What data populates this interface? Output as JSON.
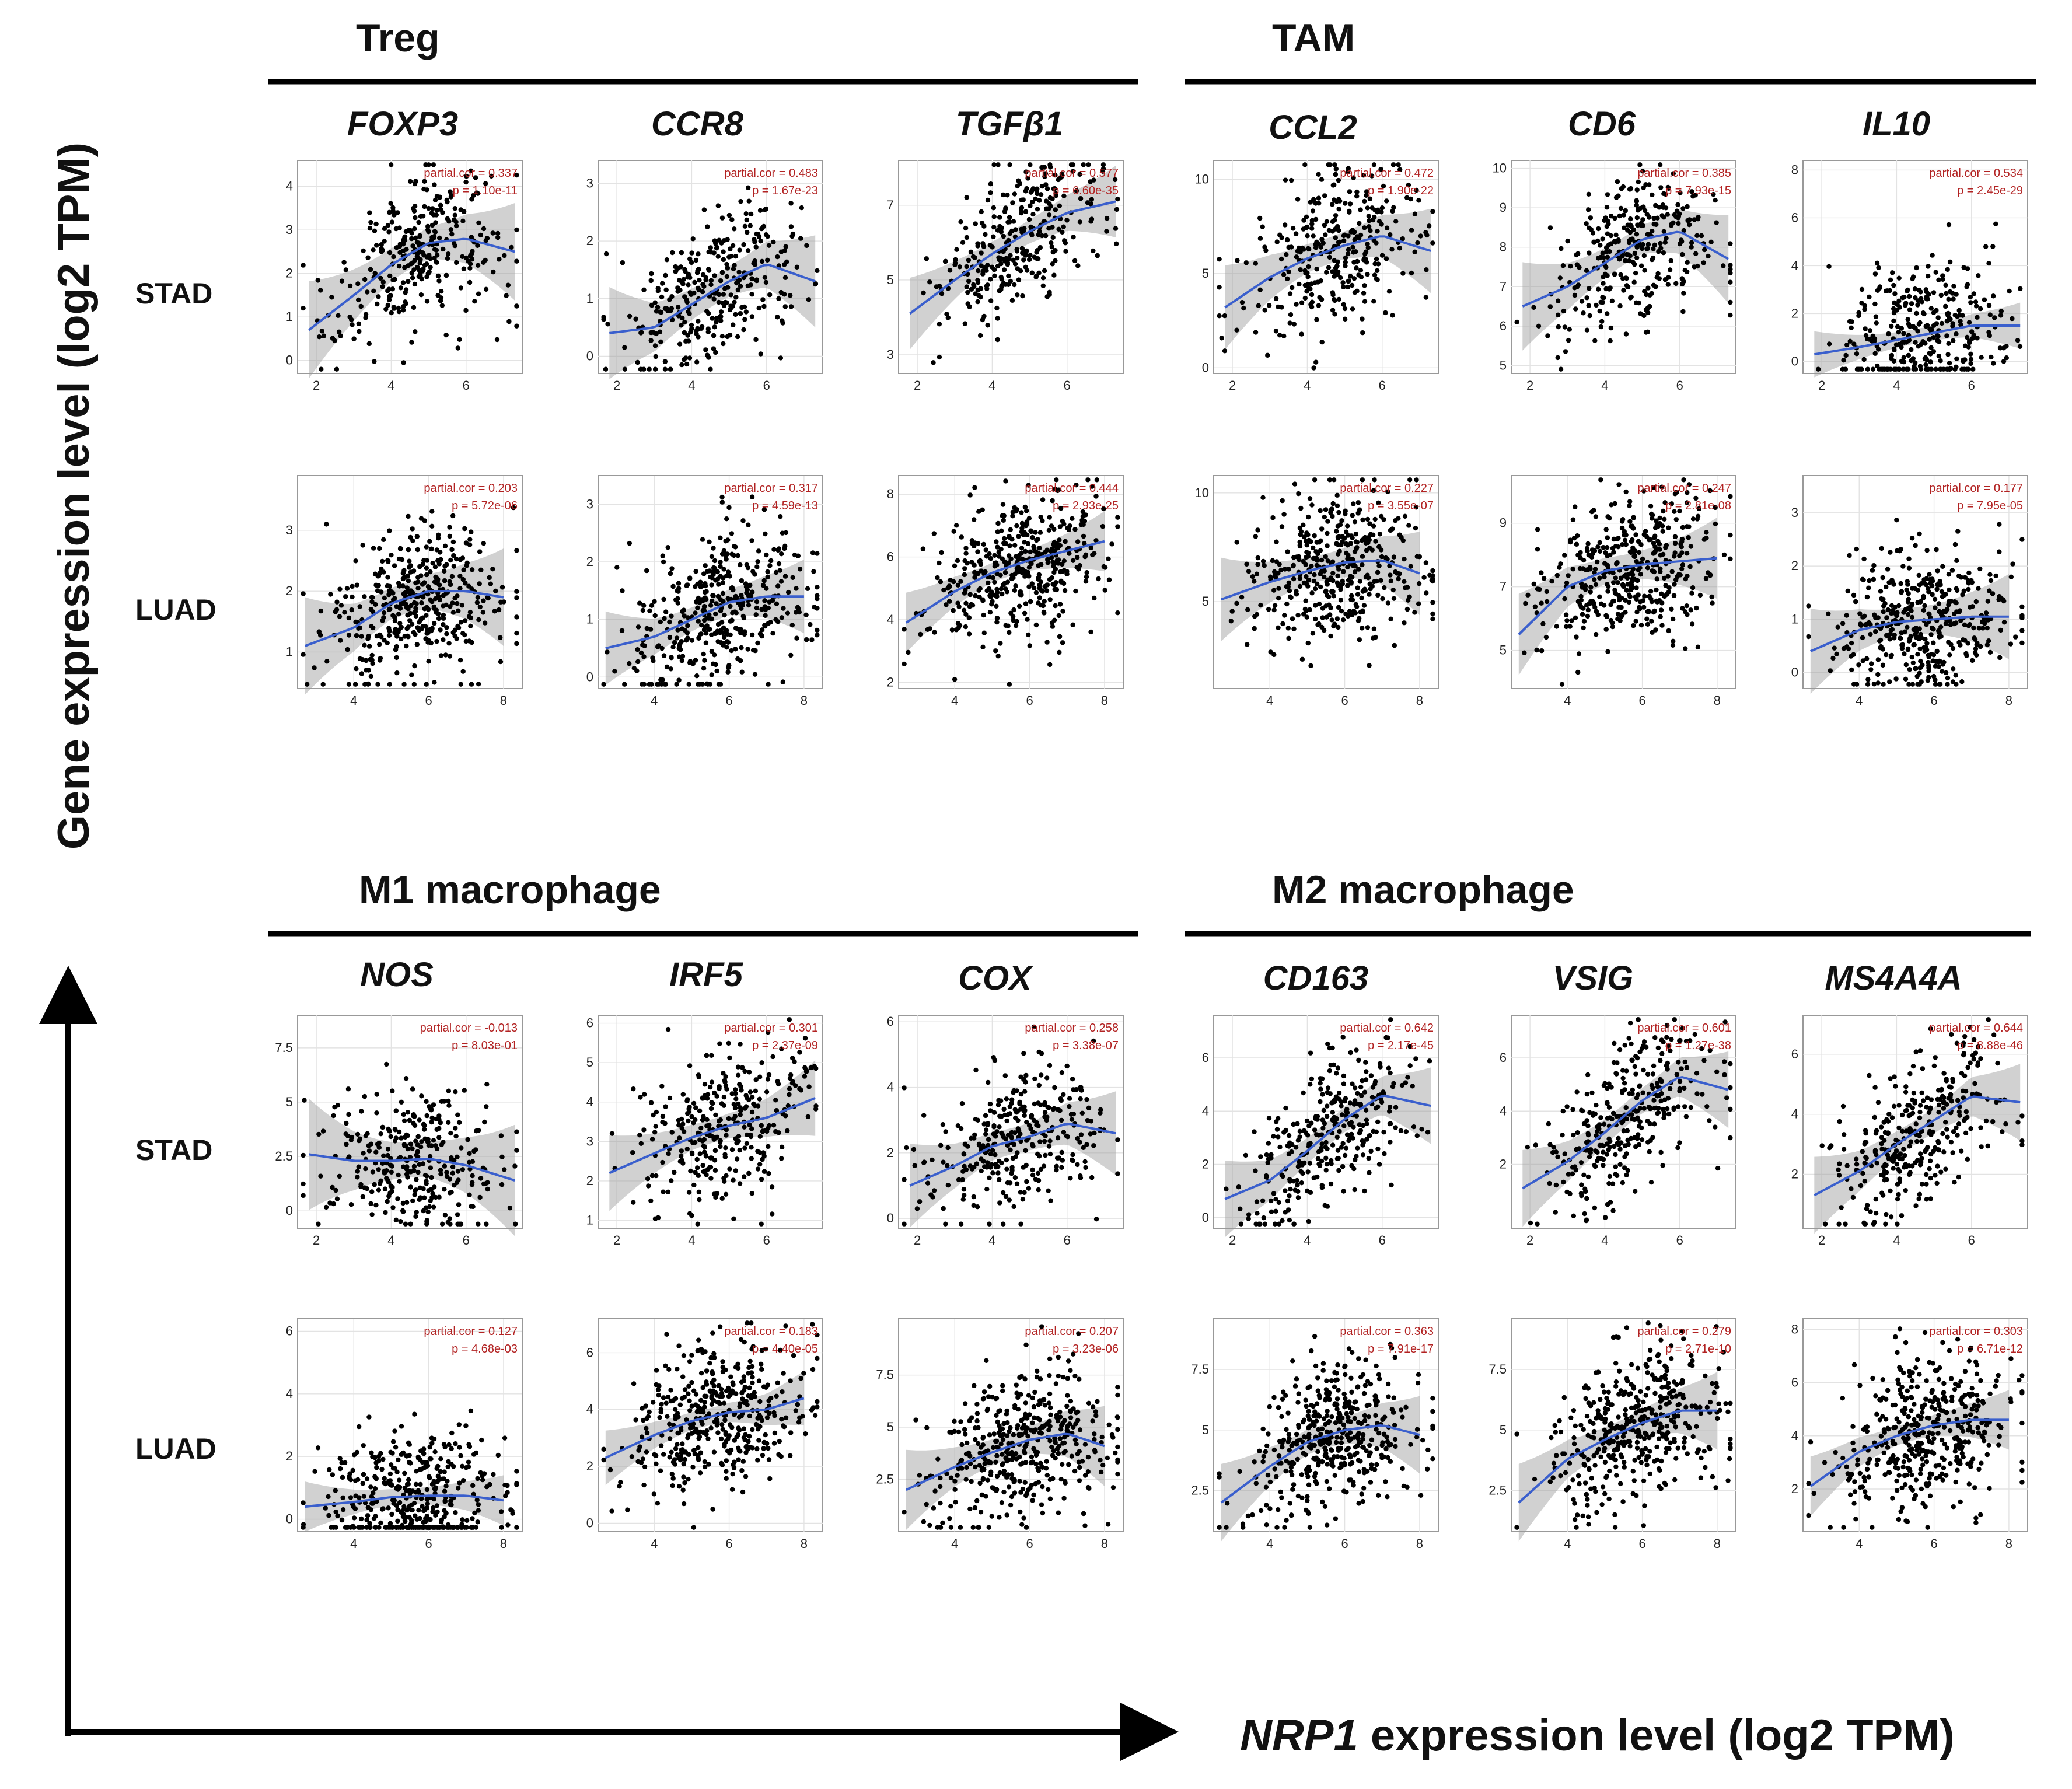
{
  "figure": {
    "y_axis_label": "Gene expression level (log2 TPM)",
    "x_axis_label_gene": "NRP1",
    "x_axis_label_rest": " expression level (log2 TPM)"
  },
  "groups": [
    {
      "title": "Treg",
      "genes": [
        "FOXP3",
        "CCR8",
        "TGFβ1"
      ]
    },
    {
      "title": "TAM",
      "genes": [
        "CCL2",
        "CD6",
        "IL10"
      ]
    },
    {
      "title": "M1 macrophage",
      "genes": [
        "NOS",
        "IRF5",
        "COX"
      ]
    },
    {
      "title": "M2 macrophage",
      "genes": [
        "CD163",
        "VSIG",
        "MS4A4A"
      ]
    }
  ],
  "row_labels": [
    "STAD",
    "LUAD",
    "STAD",
    "LUAD"
  ],
  "chart_data": [
    {
      "type": "scatter",
      "panel": "FOXP3-STAD",
      "gene": "FOXP3",
      "cancer": "STAD",
      "partial_cor": "partial.cor = 0.337",
      "p": "p = 1.10e-11",
      "xlim": [
        1.5,
        7.5
      ],
      "ylim": [
        -0.3,
        4.6
      ],
      "xticks": [
        2,
        4,
        6
      ],
      "yticks": [
        0,
        1,
        2,
        3,
        4
      ],
      "n": 320,
      "fit_x": [
        1.8,
        3,
        4,
        5,
        6,
        7.3
      ],
      "fit_y": [
        0.7,
        1.5,
        2.2,
        2.7,
        2.8,
        2.5
      ],
      "band": 0.35
    },
    {
      "type": "scatter",
      "panel": "CCR8-STAD",
      "gene": "CCR8",
      "cancer": "STAD",
      "partial_cor": "partial.cor = 0.483",
      "p": "p = 1.67e-23",
      "xlim": [
        1.5,
        7.5
      ],
      "ylim": [
        -0.3,
        3.4
      ],
      "xticks": [
        2,
        4,
        6
      ],
      "yticks": [
        0,
        1,
        2,
        3
      ],
      "n": 320,
      "fit_x": [
        1.8,
        3,
        4,
        5,
        6,
        7.3
      ],
      "fit_y": [
        0.4,
        0.5,
        0.9,
        1.3,
        1.6,
        1.3
      ],
      "band": 0.25
    },
    {
      "type": "scatter",
      "panel": "TGFB1-STAD",
      "gene": "TGFβ1",
      "cancer": "STAD",
      "partial_cor": "partial.cor = 0.577",
      "p": "p = 6.60e-35",
      "xlim": [
        1.5,
        7.5
      ],
      "ylim": [
        2.5,
        8.2
      ],
      "xticks": [
        2,
        4,
        6
      ],
      "yticks": [
        3,
        5,
        7
      ],
      "n": 320,
      "fit_x": [
        1.8,
        3,
        4,
        5,
        6,
        7.3
      ],
      "fit_y": [
        4.1,
        5.0,
        5.7,
        6.3,
        6.8,
        7.1
      ],
      "band": 0.3
    },
    {
      "type": "scatter",
      "panel": "CCL2-STAD",
      "gene": "CCL2",
      "cancer": "STAD",
      "partial_cor": "partial.cor = 0.472",
      "p": "p = 1.90e-22",
      "xlim": [
        1.5,
        7.5
      ],
      "ylim": [
        -0.3,
        11
      ],
      "xticks": [
        2,
        4,
        6
      ],
      "yticks": [
        0,
        5,
        10
      ],
      "n": 320,
      "fit_x": [
        1.8,
        3,
        4,
        5,
        6,
        7.3
      ],
      "fit_y": [
        3.2,
        4.8,
        5.8,
        6.5,
        7.0,
        6.2
      ],
      "band": 0.7
    },
    {
      "type": "scatter",
      "panel": "CD6-STAD",
      "gene": "CD6",
      "cancer": "STAD",
      "partial_cor": "partial.cor = 0.385",
      "p": "p = 7.93e-15",
      "xlim": [
        1.5,
        7.5
      ],
      "ylim": [
        4.8,
        10.2
      ],
      "xticks": [
        2,
        4,
        6
      ],
      "yticks": [
        5,
        6,
        7,
        8,
        9,
        10
      ],
      "n": 320,
      "fit_x": [
        1.8,
        3,
        4,
        5,
        6,
        7.3
      ],
      "fit_y": [
        6.5,
        7.0,
        7.6,
        8.2,
        8.4,
        7.7
      ],
      "band": 0.35
    },
    {
      "type": "scatter",
      "panel": "IL10-STAD",
      "gene": "IL10",
      "cancer": "STAD",
      "partial_cor": "partial.cor = 0.534",
      "p": "p = 2.45e-29",
      "xlim": [
        1.5,
        7.5
      ],
      "ylim": [
        -0.5,
        8.4
      ],
      "xticks": [
        2,
        4,
        6
      ],
      "yticks": [
        0,
        2,
        4,
        6,
        8
      ],
      "n": 320,
      "fit_x": [
        1.8,
        3,
        4,
        5,
        6,
        7.3
      ],
      "fit_y": [
        0.3,
        0.6,
        0.9,
        1.2,
        1.5,
        1.5
      ],
      "band": 0.3
    },
    {
      "type": "scatter",
      "panel": "FOXP3-LUAD",
      "gene": "FOXP3",
      "cancer": "LUAD",
      "partial_cor": "partial.cor = 0.203",
      "p": "p = 5.72e-06",
      "xlim": [
        2.5,
        8.5
      ],
      "ylim": [
        0.4,
        3.9
      ],
      "xticks": [
        4,
        6,
        8
      ],
      "yticks": [
        1,
        2,
        3
      ],
      "n": 420,
      "fit_x": [
        2.7,
        4,
        5,
        6,
        7,
        8
      ],
      "fit_y": [
        1.1,
        1.4,
        1.8,
        2.0,
        2.0,
        1.9
      ],
      "band": 0.25
    },
    {
      "type": "scatter",
      "panel": "CCR8-LUAD",
      "gene": "CCR8",
      "cancer": "LUAD",
      "partial_cor": "partial.cor = 0.317",
      "p": "p = 4.59e-13",
      "xlim": [
        2.5,
        8.5
      ],
      "ylim": [
        -0.2,
        3.5
      ],
      "xticks": [
        4,
        6,
        8
      ],
      "yticks": [
        0,
        1,
        2,
        3
      ],
      "n": 420,
      "fit_x": [
        2.7,
        4,
        5,
        6,
        7,
        8
      ],
      "fit_y": [
        0.5,
        0.7,
        1.0,
        1.3,
        1.4,
        1.4
      ],
      "band": 0.2
    },
    {
      "type": "scatter",
      "panel": "TGFB1-LUAD",
      "gene": "TGFβ1",
      "cancer": "LUAD",
      "partial_cor": "partial.cor = 0.444",
      "p": "p = 2.93e-25",
      "xlim": [
        2.5,
        8.5
      ],
      "ylim": [
        1.8,
        8.6
      ],
      "xticks": [
        4,
        6,
        8
      ],
      "yticks": [
        2,
        4,
        6,
        8
      ],
      "n": 420,
      "fit_x": [
        2.7,
        4,
        5,
        6,
        7,
        8
      ],
      "fit_y": [
        3.9,
        4.9,
        5.5,
        5.9,
        6.2,
        6.5
      ],
      "band": 0.3
    },
    {
      "type": "scatter",
      "panel": "CCL2-LUAD",
      "gene": "CCL2",
      "cancer": "LUAD",
      "partial_cor": "partial.cor = 0.227",
      "p": "p = 3.55e-07",
      "xlim": [
        2.5,
        8.5
      ],
      "ylim": [
        1,
        10.8
      ],
      "xticks": [
        4,
        6,
        8
      ],
      "yticks": [
        5,
        10
      ],
      "n": 420,
      "fit_x": [
        2.7,
        4,
        5,
        6,
        7,
        8
      ],
      "fit_y": [
        5.1,
        5.9,
        6.4,
        6.8,
        6.9,
        6.3
      ],
      "band": 0.6
    },
    {
      "type": "scatter",
      "panel": "CD6-LUAD",
      "gene": "CD6",
      "cancer": "LUAD",
      "partial_cor": "partial.cor = 0.247",
      "p": "p = 2.81e-08",
      "xlim": [
        2.5,
        8.5
      ],
      "ylim": [
        3.8,
        10.5
      ],
      "xticks": [
        4,
        6,
        8
      ],
      "yticks": [
        5,
        7,
        9
      ],
      "n": 420,
      "fit_x": [
        2.7,
        4,
        5,
        6,
        7,
        8
      ],
      "fit_y": [
        5.5,
        7.0,
        7.5,
        7.7,
        7.8,
        7.9
      ],
      "band": 0.4
    },
    {
      "type": "scatter",
      "panel": "IL10-LUAD",
      "gene": "IL10",
      "cancer": "LUAD",
      "partial_cor": "partial.cor = 0.177",
      "p": "p = 7.95e-05",
      "xlim": [
        2.5,
        8.5
      ],
      "ylim": [
        -0.3,
        3.7
      ],
      "xticks": [
        4,
        6,
        8
      ],
      "yticks": [
        0,
        1,
        2,
        3
      ],
      "n": 420,
      "fit_x": [
        2.7,
        4,
        5,
        6,
        7,
        8
      ],
      "fit_y": [
        0.4,
        0.8,
        0.95,
        1.0,
        1.05,
        1.05
      ],
      "band": 0.25
    },
    {
      "type": "scatter",
      "panel": "NOS-STAD",
      "gene": "NOS",
      "cancer": "STAD",
      "partial_cor": "partial.cor = -0.013",
      "p": "p = 8.03e-01",
      "xlim": [
        1.5,
        7.5
      ],
      "ylim": [
        -0.8,
        9
      ],
      "xticks": [
        2,
        4,
        6
      ],
      "yticks": [
        0,
        2.5,
        5,
        7.5
      ],
      "n": 320,
      "fit_x": [
        1.8,
        3,
        4,
        5,
        6,
        7.3
      ],
      "fit_y": [
        2.6,
        2.3,
        2.3,
        2.4,
        2.1,
        1.4
      ],
      "band": 0.8
    },
    {
      "type": "scatter",
      "panel": "IRF5-STAD",
      "gene": "IRF5",
      "cancer": "STAD",
      "partial_cor": "partial.cor = 0.301",
      "p": "p = 2.37e-09",
      "xlim": [
        1.5,
        7.5
      ],
      "ylim": [
        0.8,
        6.2
      ],
      "xticks": [
        2,
        4,
        6
      ],
      "yticks": [
        1,
        2,
        3,
        4,
        5,
        6
      ],
      "n": 320,
      "fit_x": [
        1.8,
        3,
        4,
        5,
        6,
        7.3
      ],
      "fit_y": [
        2.2,
        2.7,
        3.1,
        3.4,
        3.6,
        4.1
      ],
      "band": 0.3
    },
    {
      "type": "scatter",
      "panel": "COX-STAD",
      "gene": "COX",
      "cancer": "STAD",
      "partial_cor": "partial.cor = 0.258",
      "p": "p = 3.38e-07",
      "xlim": [
        1.5,
        7.5
      ],
      "ylim": [
        -0.3,
        6.2
      ],
      "xticks": [
        2,
        4,
        6
      ],
      "yticks": [
        0,
        2,
        4,
        6
      ],
      "n": 320,
      "fit_x": [
        1.8,
        3,
        4,
        5,
        6,
        7.3
      ],
      "fit_y": [
        1.0,
        1.6,
        2.2,
        2.5,
        2.9,
        2.6
      ],
      "band": 0.4
    },
    {
      "type": "scatter",
      "panel": "CD163-STAD",
      "gene": "CD163",
      "cancer": "STAD",
      "partial_cor": "partial.cor = 0.642",
      "p": "p = 2.17e-45",
      "xlim": [
        1.5,
        7.5
      ],
      "ylim": [
        -0.4,
        7.6
      ],
      "xticks": [
        2,
        4,
        6
      ],
      "yticks": [
        0,
        2,
        4,
        6
      ],
      "n": 320,
      "fit_x": [
        1.8,
        3,
        4,
        5,
        6,
        7.3
      ],
      "fit_y": [
        0.7,
        1.4,
        2.5,
        3.7,
        4.6,
        4.2
      ],
      "band": 0.45
    },
    {
      "type": "scatter",
      "panel": "VSIG-STAD",
      "gene": "VSIG",
      "cancer": "STAD",
      "partial_cor": "partial.cor = 0.601",
      "p": "p = 1.27e-38",
      "xlim": [
        1.5,
        7.5
      ],
      "ylim": [
        -0.4,
        7.6
      ],
      "xticks": [
        2,
        4,
        6
      ],
      "yticks": [
        2,
        4,
        6
      ],
      "n": 320,
      "fit_x": [
        1.8,
        3,
        4,
        5,
        6,
        7.3
      ],
      "fit_y": [
        1.1,
        2.1,
        3.2,
        4.4,
        5.3,
        4.8
      ],
      "band": 0.45
    },
    {
      "type": "scatter",
      "panel": "MS4A4A-STAD",
      "gene": "MS4A4A",
      "cancer": "STAD",
      "partial_cor": "partial.cor = 0.644",
      "p": "p = 8.88e-46",
      "xlim": [
        1.5,
        7.5
      ],
      "ylim": [
        0.2,
        7.3
      ],
      "xticks": [
        2,
        4,
        6
      ],
      "yticks": [
        2,
        4,
        6
      ],
      "n": 320,
      "fit_x": [
        1.8,
        3,
        4,
        5,
        6,
        7.3
      ],
      "fit_y": [
        1.3,
        2.1,
        3.0,
        3.8,
        4.6,
        4.4
      ],
      "band": 0.4
    },
    {
      "type": "scatter",
      "panel": "NOS-LUAD",
      "gene": "NOS",
      "cancer": "LUAD",
      "partial_cor": "partial.cor = 0.127",
      "p": "p = 4.68e-03",
      "xlim": [
        2.5,
        8.5
      ],
      "ylim": [
        -0.4,
        6.4
      ],
      "xticks": [
        4,
        6,
        8
      ],
      "yticks": [
        0,
        2,
        4,
        6
      ],
      "n": 420,
      "fit_x": [
        2.7,
        4,
        5,
        6,
        7,
        8
      ],
      "fit_y": [
        0.4,
        0.55,
        0.7,
        0.75,
        0.75,
        0.6
      ],
      "band": 0.25
    },
    {
      "type": "scatter",
      "panel": "IRF5-LUAD",
      "gene": "IRF5",
      "cancer": "LUAD",
      "partial_cor": "partial.cor = 0.183",
      "p": "p = 4.40e-05",
      "xlim": [
        2.5,
        8.5
      ],
      "ylim": [
        -0.3,
        7.2
      ],
      "xticks": [
        4,
        6,
        8
      ],
      "yticks": [
        0,
        2,
        4,
        6
      ],
      "n": 420,
      "fit_x": [
        2.7,
        4,
        5,
        6,
        7,
        8
      ],
      "fit_y": [
        2.3,
        3.1,
        3.6,
        3.9,
        4.0,
        4.4
      ],
      "band": 0.3
    },
    {
      "type": "scatter",
      "panel": "COX-LUAD",
      "gene": "COX",
      "cancer": "LUAD",
      "partial_cor": "partial.cor = 0.207",
      "p": "p = 3.23e-06",
      "xlim": [
        2.5,
        8.5
      ],
      "ylim": [
        0,
        10.2
      ],
      "xticks": [
        4,
        6,
        8
      ],
      "yticks": [
        2.5,
        5,
        7.5
      ],
      "n": 420,
      "fit_x": [
        2.7,
        4,
        5,
        6,
        7,
        8
      ],
      "fit_y": [
        2.0,
        3.1,
        3.8,
        4.4,
        4.7,
        4.1
      ],
      "band": 0.6
    },
    {
      "type": "scatter",
      "panel": "CD163-LUAD",
      "gene": "CD163",
      "cancer": "LUAD",
      "partial_cor": "partial.cor = 0.363",
      "p": "p = 7.91e-17",
      "xlim": [
        2.5,
        8.5
      ],
      "ylim": [
        0.8,
        9.6
      ],
      "xticks": [
        4,
        6,
        8
      ],
      "yticks": [
        2.5,
        5,
        7.5
      ],
      "n": 420,
      "fit_x": [
        2.7,
        4,
        5,
        6,
        7,
        8
      ],
      "fit_y": [
        2.0,
        3.5,
        4.5,
        5.0,
        5.2,
        4.8
      ],
      "band": 0.5
    },
    {
      "type": "scatter",
      "panel": "VSIG-LUAD",
      "gene": "VSIG",
      "cancer": "LUAD",
      "partial_cor": "partial.cor = 0.279",
      "p": "p = 2.71e-10",
      "xlim": [
        2.5,
        8.5
      ],
      "ylim": [
        0.8,
        9.6
      ],
      "xticks": [
        4,
        6,
        8
      ],
      "yticks": [
        2.5,
        5,
        7.5
      ],
      "n": 420,
      "fit_x": [
        2.7,
        4,
        5,
        6,
        7,
        8
      ],
      "fit_y": [
        2.0,
        3.8,
        4.6,
        5.3,
        5.8,
        5.8
      ],
      "band": 0.5
    },
    {
      "type": "scatter",
      "panel": "MS4A4A-LUAD",
      "gene": "MS4A4A",
      "cancer": "LUAD",
      "partial_cor": "partial.cor = 0.303",
      "p": "p = 6.71e-12",
      "xlim": [
        2.5,
        8.5
      ],
      "ylim": [
        0.4,
        8.4
      ],
      "xticks": [
        4,
        6,
        8
      ],
      "yticks": [
        2,
        4,
        6,
        8
      ],
      "n": 420,
      "fit_x": [
        2.7,
        4,
        5,
        6,
        7,
        8
      ],
      "fit_y": [
        2.1,
        3.4,
        4.0,
        4.4,
        4.6,
        4.6
      ],
      "band": 0.35
    }
  ]
}
